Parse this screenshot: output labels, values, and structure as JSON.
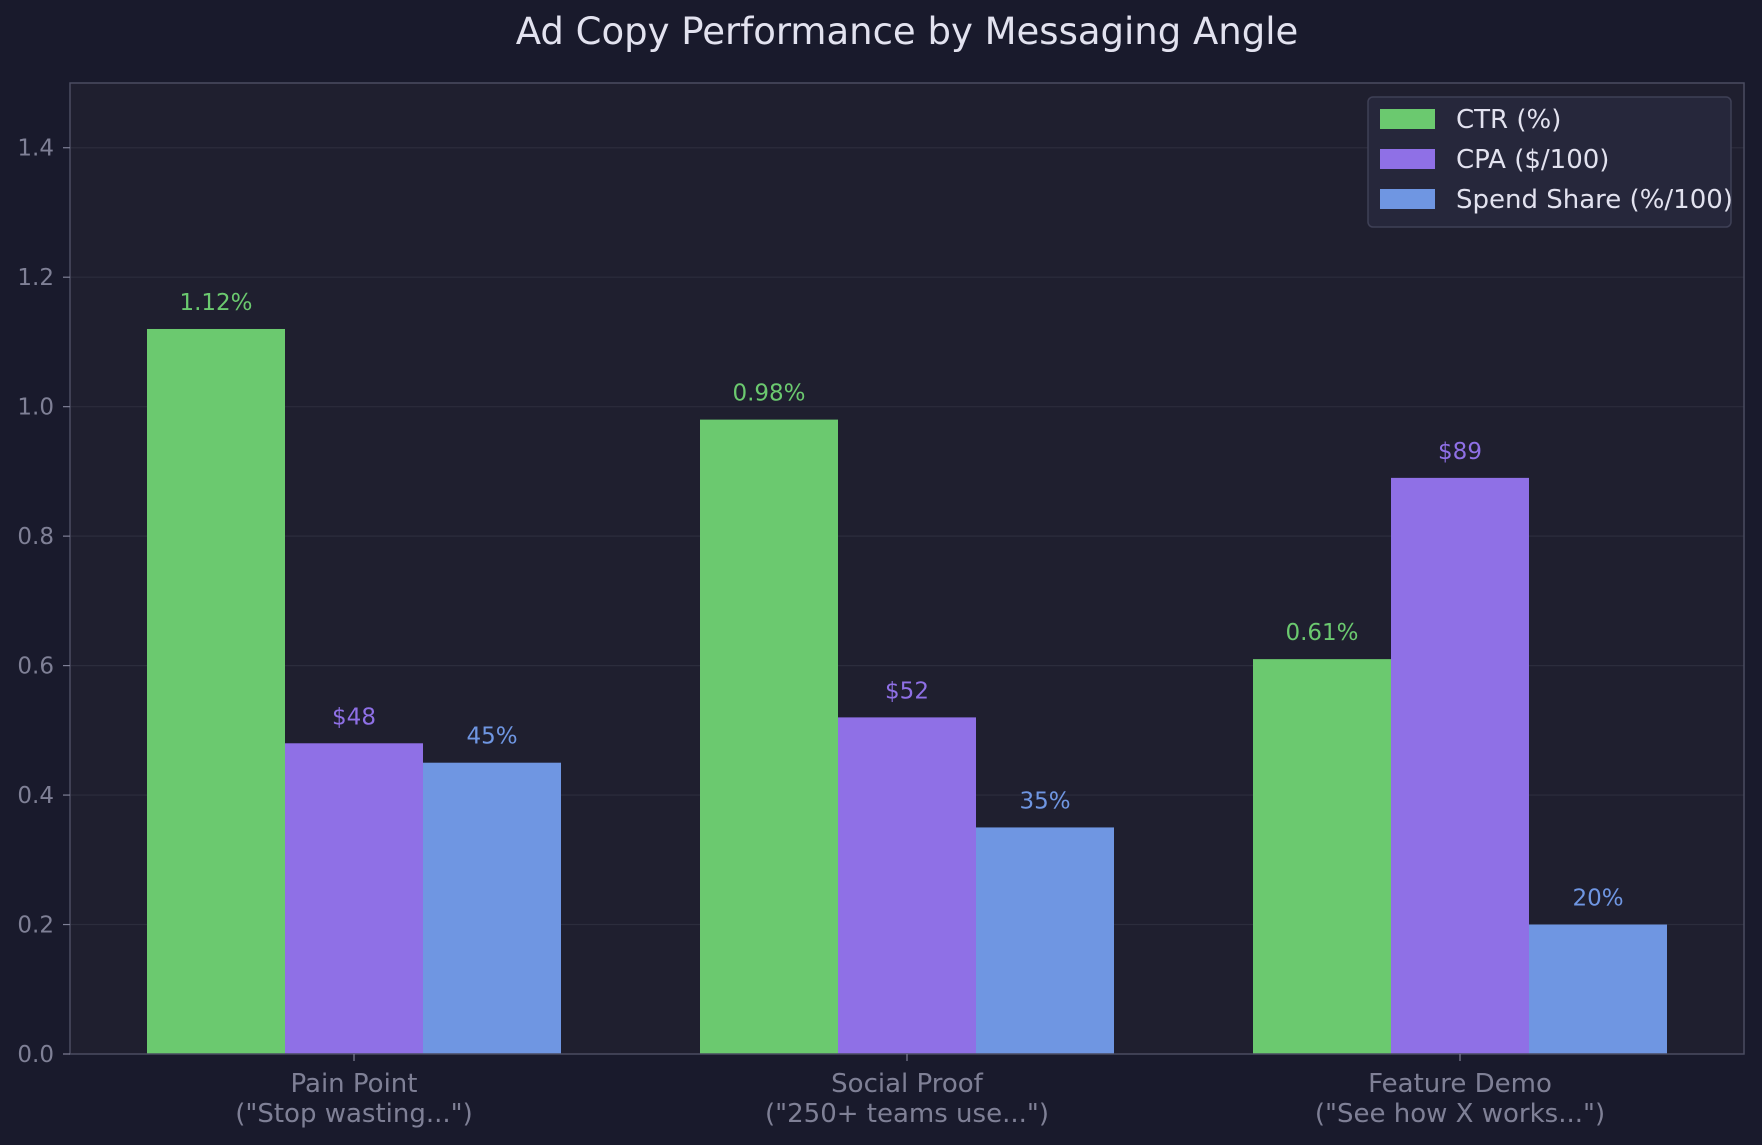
{
  "chart_data": {
    "type": "bar",
    "title": "Ad Copy Performance by Messaging Angle",
    "xlabel": "",
    "ylabel": "",
    "ylim": [
      0,
      1.5
    ],
    "yticks": [
      0.0,
      0.2,
      0.4,
      0.6,
      0.8,
      1.0,
      1.2,
      1.4
    ],
    "ytick_labels": [
      "0.0",
      "0.2",
      "0.4",
      "0.6",
      "0.8",
      "1.0",
      "1.2",
      "1.4"
    ],
    "grid": true,
    "legend_position": "top-right",
    "categories": [
      {
        "line1": "Pain Point",
        "line2": "(\"Stop wasting...\")"
      },
      {
        "line1": "Social Proof",
        "line2": "(\"250+ teams use...\")"
      },
      {
        "line1": "Feature Demo",
        "line2": "(\"See how X works...\")"
      }
    ],
    "series": [
      {
        "name": "CTR (%)",
        "color": "#6bc96f",
        "values": [
          1.12,
          0.98,
          0.61
        ],
        "labels": [
          "1.12%",
          "0.98%",
          "0.61%"
        ]
      },
      {
        "name": "CPA ($/100)",
        "color": "#8f70e6",
        "values": [
          0.48,
          0.52,
          0.89
        ],
        "labels": [
          "$48",
          "$52",
          "$89"
        ]
      },
      {
        "name": "Spend Share (%/100)",
        "color": "#6f96e2",
        "values": [
          0.45,
          0.35,
          0.2
        ],
        "labels": [
          "45%",
          "35%",
          "20%"
        ]
      }
    ],
    "colors": {
      "page_background": "#191a2c",
      "plot_background": "#1f1f2f",
      "axes_edge": "#4b4c61",
      "grid": "#2c2d3d",
      "title": "#e2e2ef",
      "ticks": "#7f8096",
      "legend_background": "#26273b",
      "legend_edge": "#3f4056",
      "legend_text": "#e2e2ef"
    }
  }
}
